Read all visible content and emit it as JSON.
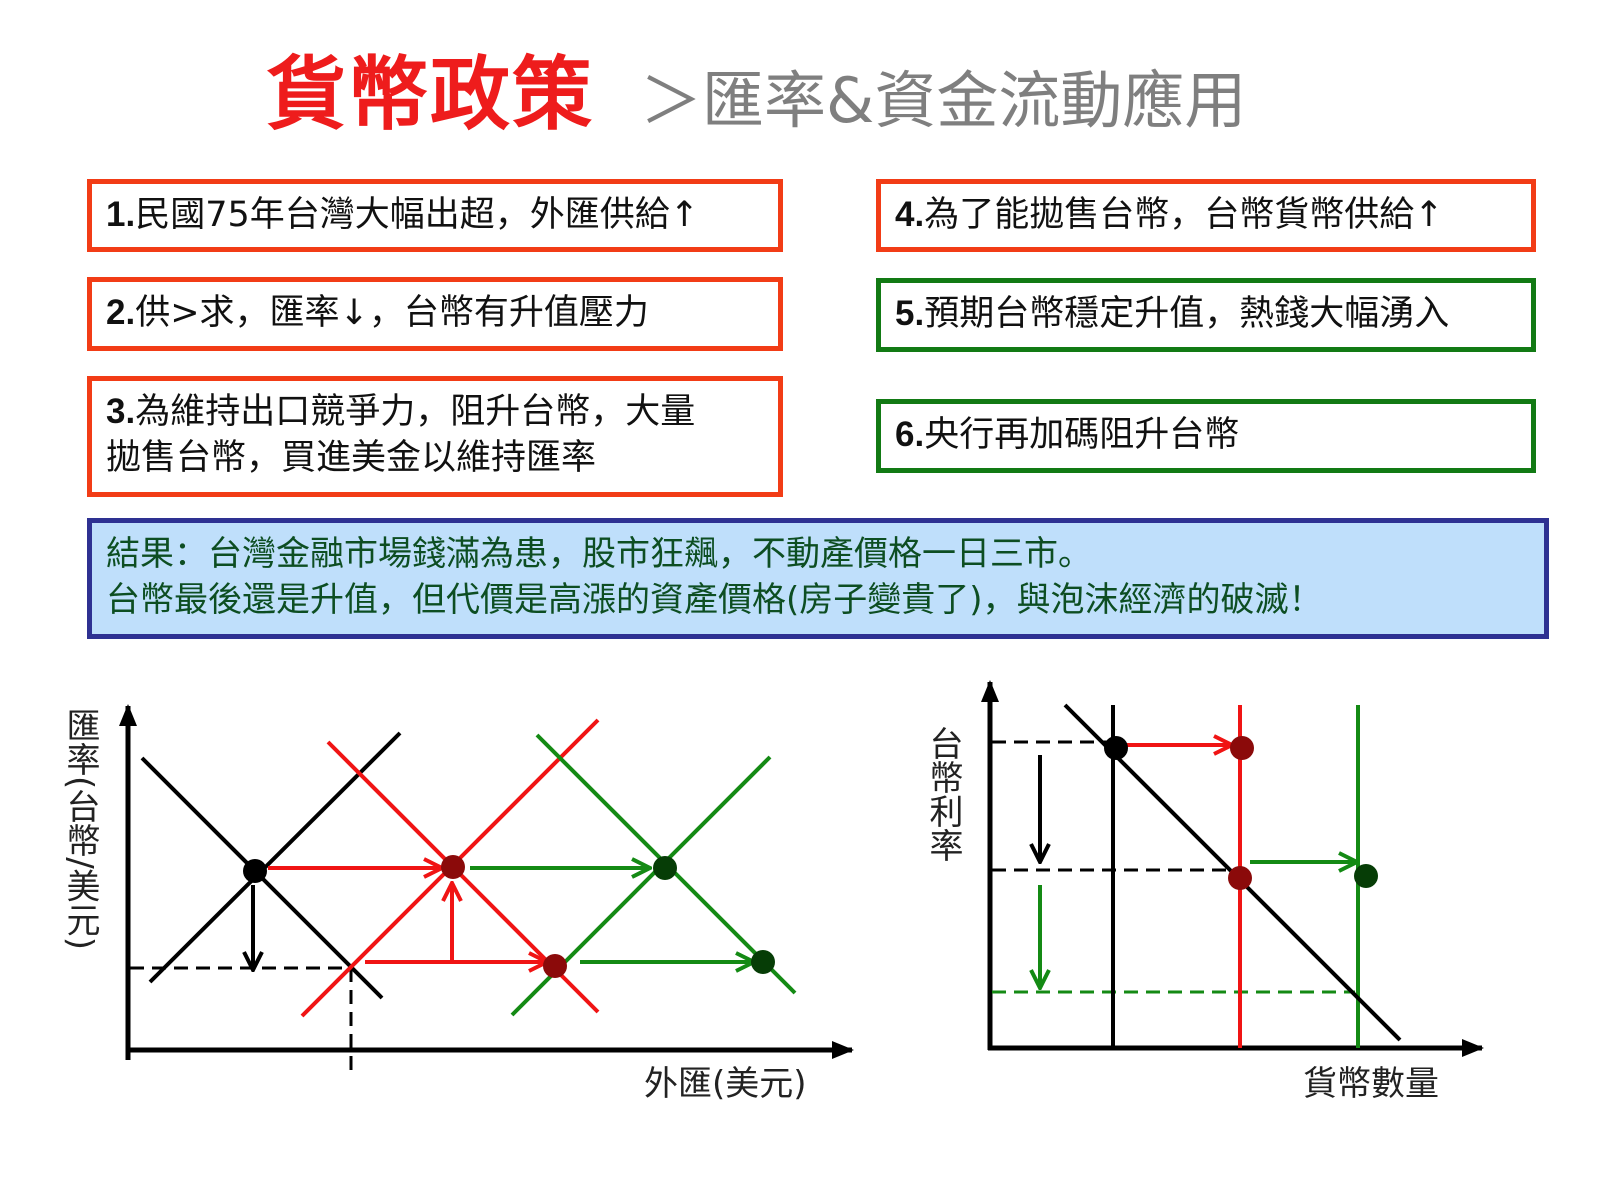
{
  "title": {
    "main": "貨幣政策",
    "sub": "＞匯率&資金流動應用"
  },
  "steps": [
    {
      "num": "1.",
      "text": "民國75年台灣大幅出超，外匯供給↑"
    },
    {
      "num": "2.",
      "text": "供>求，匯率↓，台幣有升值壓力"
    },
    {
      "num": "3.",
      "text": "為維持出口競爭力，阻升台幣，大量",
      "text2": "拋售台幣，買進美金以維持匯率"
    },
    {
      "num": "4.",
      "text": "為了能拋售台幣，台幣貨幣供給↑"
    },
    {
      "num": "5.",
      "text": "預期台幣穩定升值，熱錢大幅湧入"
    },
    {
      "num": "6.",
      "text": "央行再加碼阻升台幣"
    }
  ],
  "result": {
    "line1": "結果：台灣金融市場錢滿為患，股市狂飆，不動產價格一日三市。",
    "line2": "台幣最後還是升值，但代價是高漲的資產價格(房子變貴了)，與泡沫經濟的破滅！"
  },
  "diagram_fx": {
    "ylabel": "匯率(台幣/美元)",
    "xlabel": "外匯(美元)"
  },
  "diagram_money": {
    "ylabel": "台幣利率",
    "xlabel": "貨幣數量"
  },
  "colors": {
    "title": "#ee1c1c",
    "red_border": "#f23c16",
    "green_border": "#127a14",
    "result_border": "#2e3192",
    "result_bg": "#bfdffb",
    "result_text": "#0d4e22"
  }
}
